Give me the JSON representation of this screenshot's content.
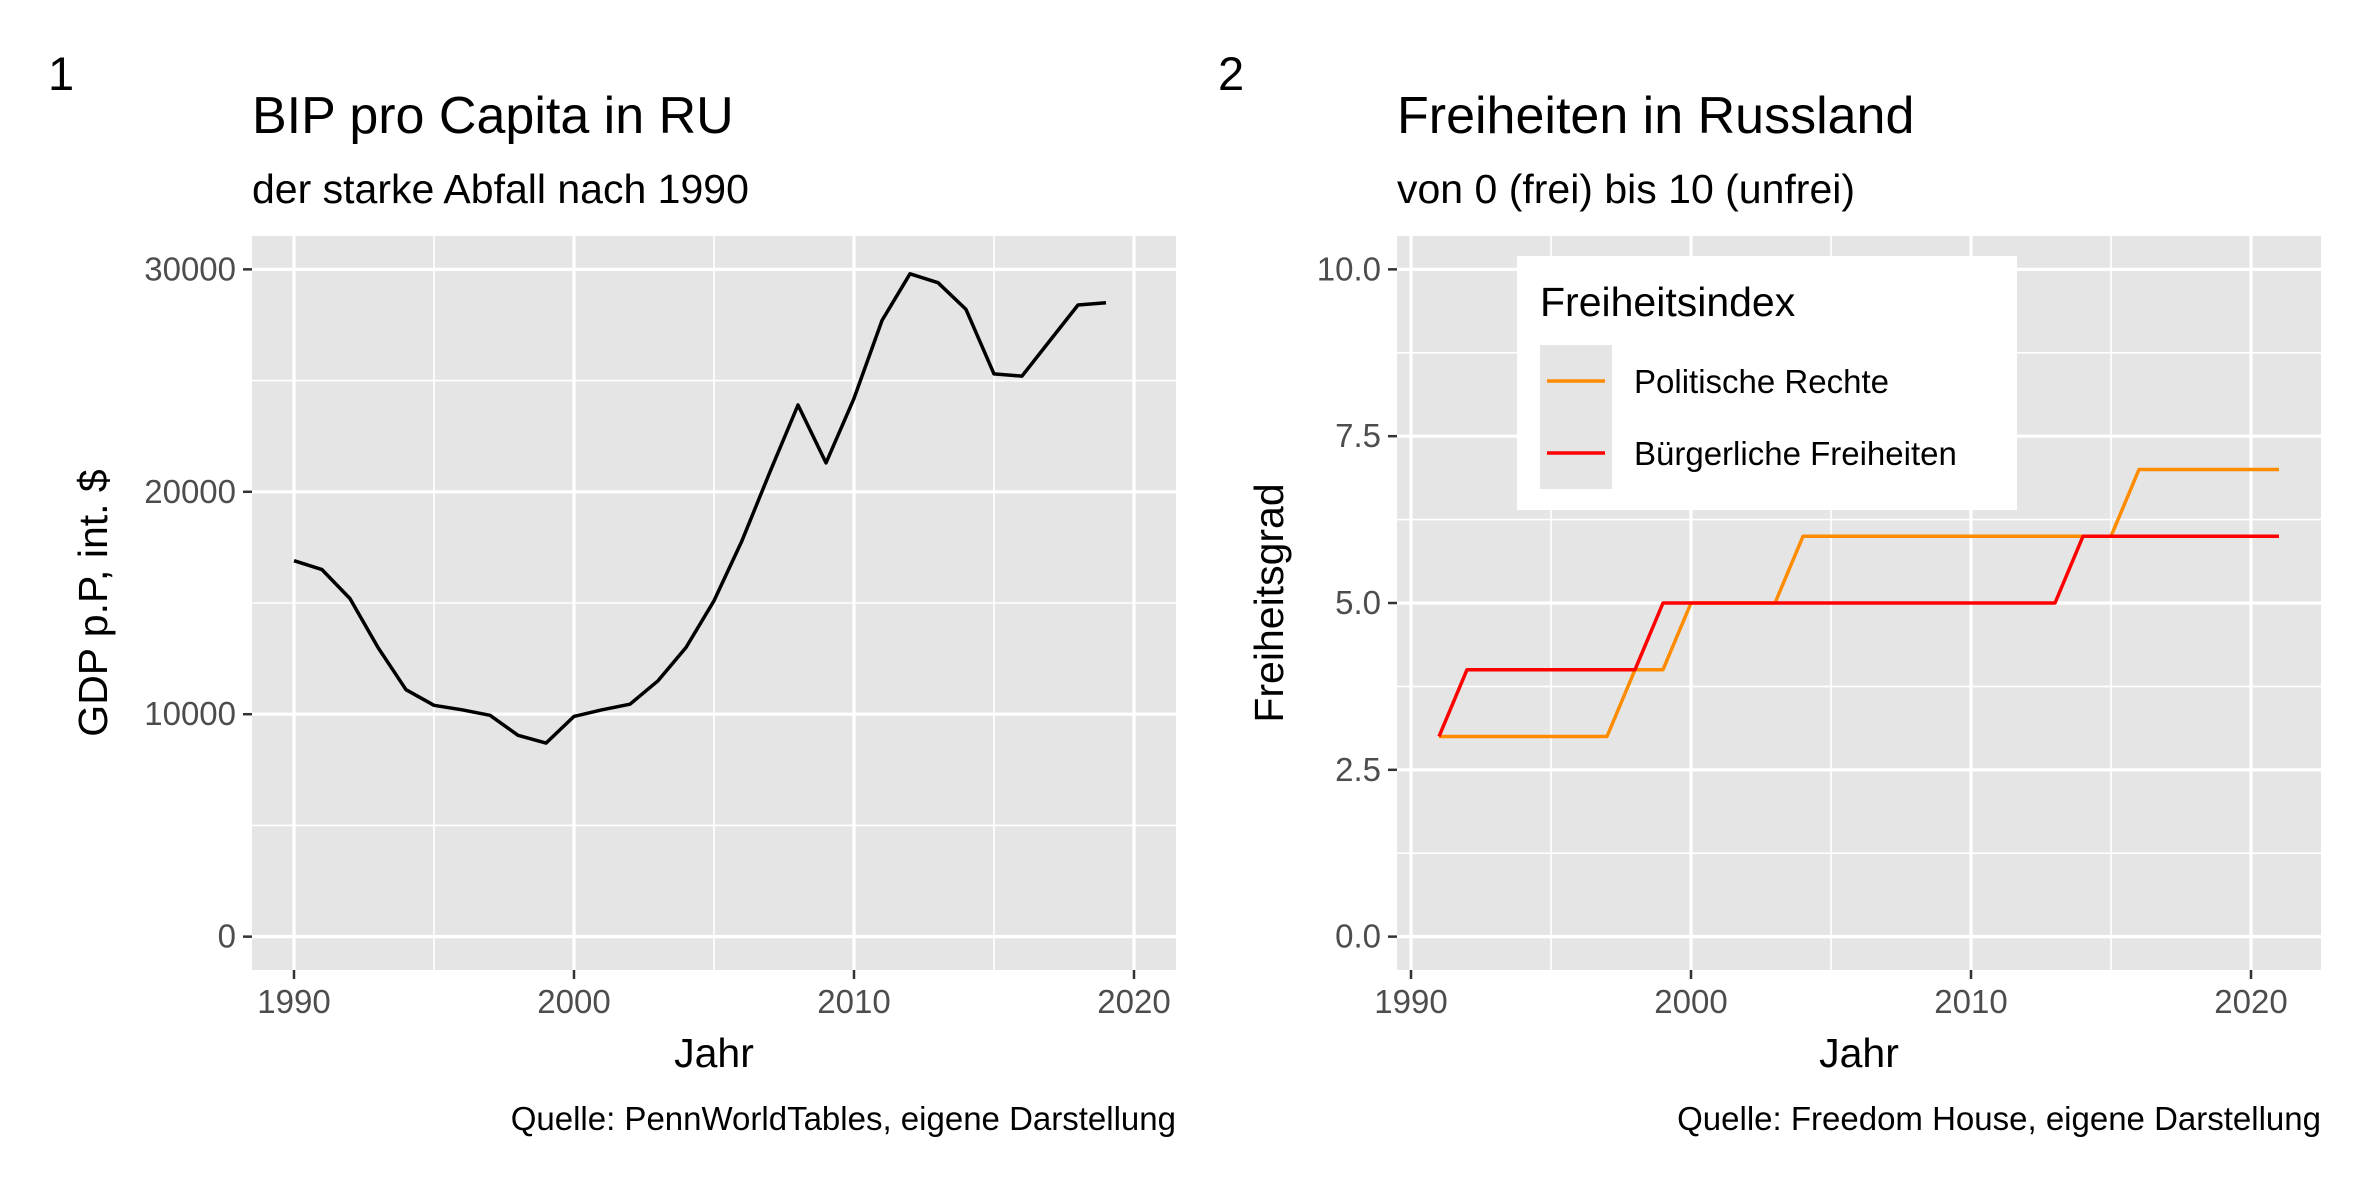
{
  "colors": {
    "panel_bg": "#e5e5e5",
    "grid": "#ffffff",
    "gdp_line": "#000000",
    "politische_rechte": "#ff8c00",
    "buergerliche_freiheiten": "#ff0000"
  },
  "chart_data": [
    {
      "type": "line",
      "tag": "1",
      "title": "BIP pro Capita in RU",
      "subtitle": "der starke Abfall nach 1990",
      "xlabel": "Jahr",
      "ylabel": "GDP p.P, int. $",
      "caption": "Quelle: PennWorldTables, eigene Darstellung",
      "xlim": [
        1988.5,
        2021.5
      ],
      "ylim": [
        -1500,
        31500
      ],
      "xticks": [
        1990,
        2000,
        2010,
        2020
      ],
      "yticks": [
        0,
        10000,
        20000,
        30000
      ],
      "grid": true,
      "legend": "none",
      "series": [
        {
          "x": [
            1990,
            1991,
            1992,
            1993,
            1994,
            1995,
            1996,
            1997,
            1998,
            1999,
            2000,
            2001,
            2002,
            2003,
            2004,
            2005,
            2006,
            2007,
            2008,
            2009,
            2010,
            2011,
            2012,
            2013,
            2014,
            2015,
            2016,
            2017,
            2018,
            2019
          ],
          "y": [
            16900,
            16500,
            15200,
            13000,
            11100,
            10400,
            10200,
            9950,
            9050,
            8700,
            9900,
            10200,
            10450,
            11500,
            13000,
            15100,
            17800,
            20900,
            23900,
            21300,
            24200,
            27700,
            29800,
            29400,
            28200,
            25300,
            25200,
            26800,
            28400,
            28500
          ]
        }
      ]
    },
    {
      "type": "line",
      "tag": "2",
      "title": "Freiheiten in Russland",
      "subtitle": "von 0 (frei) bis 10 (unfrei)",
      "xlabel": "Jahr",
      "ylabel": "Freiheitsgrad",
      "caption": "Quelle: Freedom House, eigene Darstellung",
      "xlim": [
        1989.5,
        2022.5
      ],
      "ylim": [
        -0.5,
        10.5
      ],
      "xticks": [
        1990,
        2000,
        2010,
        2020
      ],
      "yticks": [
        0.0,
        2.5,
        5.0,
        7.5,
        10.0
      ],
      "ytick_labels": [
        "0.0",
        "2.5",
        "5.0",
        "7.5",
        "10.0"
      ],
      "grid": true,
      "legend": "top-left",
      "legend_title": "Freiheitsindex",
      "series": [
        {
          "name": "Politische Rechte",
          "color_key": "politische_rechte",
          "x": [
            1991,
            1992,
            1993,
            1994,
            1995,
            1996,
            1997,
            1998,
            1999,
            2000,
            2001,
            2002,
            2003,
            2004,
            2005,
            2006,
            2007,
            2008,
            2009,
            2010,
            2011,
            2012,
            2013,
            2014,
            2015,
            2016,
            2017,
            2018,
            2019,
            2020,
            2021
          ],
          "y": [
            3,
            3,
            3,
            3,
            3,
            3,
            3,
            4,
            4,
            5,
            5,
            5,
            5,
            6,
            6,
            6,
            6,
            6,
            6,
            6,
            6,
            6,
            6,
            6,
            6,
            7,
            7,
            7,
            7,
            7,
            7
          ]
        },
        {
          "name": "Bürgerliche Freiheiten",
          "color_key": "buergerliche_freiheiten",
          "x": [
            1991,
            1992,
            1993,
            1994,
            1995,
            1996,
            1997,
            1998,
            1999,
            2000,
            2001,
            2002,
            2003,
            2004,
            2005,
            2006,
            2007,
            2008,
            2009,
            2010,
            2011,
            2012,
            2013,
            2014,
            2015,
            2016,
            2017,
            2018,
            2019,
            2020,
            2021
          ],
          "y": [
            3,
            4,
            4,
            4,
            4,
            4,
            4,
            4,
            5,
            5,
            5,
            5,
            5,
            5,
            5,
            5,
            5,
            5,
            5,
            5,
            5,
            5,
            5,
            6,
            6,
            6,
            6,
            6,
            6,
            6,
            6
          ]
        }
      ]
    }
  ]
}
